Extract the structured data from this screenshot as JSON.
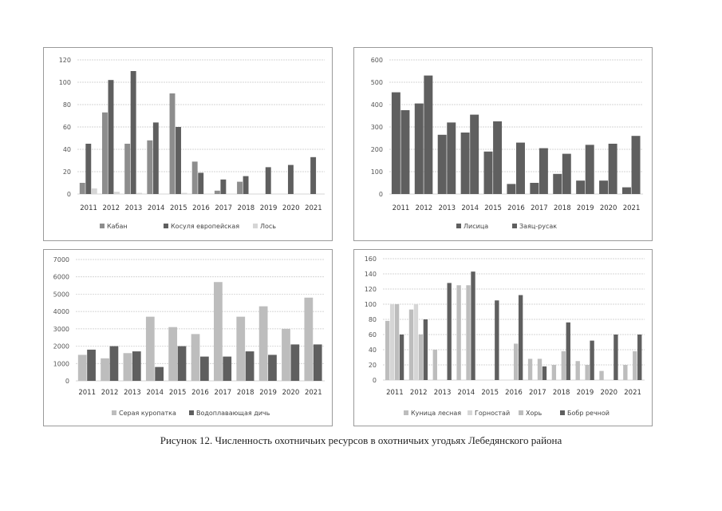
{
  "caption": "Рисунок 12. Численность охотничьих ресурсов в охотничьих угодьях Лебедянского района",
  "colors": {
    "dark": "#5f5f5f",
    "mid": "#8d8d8d",
    "light": "#bdbdbd",
    "pale": "#d6d6d6",
    "grid": "#c8c8c8"
  },
  "chart_data": [
    {
      "type": "bar",
      "title": "",
      "xlabel": "",
      "ylabel": "",
      "categories": [
        "2011",
        "2012",
        "2013",
        "2014",
        "2015",
        "2016",
        "2017",
        "2018",
        "2019",
        "2020",
        "2021"
      ],
      "ylim": [
        0,
        120
      ],
      "yticks": [
        "0",
        "20",
        "40",
        "60",
        "80",
        "100",
        "120"
      ],
      "series": [
        {
          "name": "Кабан",
          "values": [
            10,
            73,
            45,
            48,
            90,
            29,
            3,
            11,
            0,
            0,
            0
          ]
        },
        {
          "name": "Косуля европейская",
          "values": [
            45,
            102,
            110,
            64,
            60,
            19,
            13,
            16,
            24,
            26,
            33
          ]
        },
        {
          "name": "Лось",
          "values": [
            5,
            2,
            1,
            0,
            1,
            0,
            0,
            0,
            0,
            0,
            0
          ]
        }
      ],
      "legend": "bottom"
    },
    {
      "type": "bar",
      "title": "",
      "xlabel": "",
      "ylabel": "",
      "categories": [
        "2011",
        "2012",
        "2013",
        "2014",
        "2015",
        "2016",
        "2017",
        "2018",
        "2019",
        "2020",
        "2021"
      ],
      "ylim": [
        0,
        600
      ],
      "yticks": [
        "0",
        "100",
        "200",
        "300",
        "400",
        "500",
        "600"
      ],
      "series": [
        {
          "name": "Лисица",
          "values": [
            455,
            405,
            265,
            275,
            190,
            45,
            50,
            90,
            60,
            60,
            30
          ]
        },
        {
          "name": "Заяц-русак",
          "values": [
            375,
            530,
            320,
            355,
            325,
            230,
            205,
            180,
            220,
            225,
            260
          ]
        }
      ],
      "legend": "bottom"
    },
    {
      "type": "bar",
      "title": "",
      "xlabel": "",
      "ylabel": "",
      "categories": [
        "2011",
        "2012",
        "2013",
        "2014",
        "2015",
        "2016",
        "2017",
        "2018",
        "2019",
        "2020",
        "2021"
      ],
      "ylim": [
        0,
        7000
      ],
      "yticks": [
        "0",
        "1000",
        "2000",
        "3000",
        "4000",
        "5000",
        "6000",
        "7000"
      ],
      "series": [
        {
          "name": "Серая куропатка",
          "values": [
            1500,
            1300,
            1600,
            3700,
            3100,
            2700,
            5700,
            3700,
            4300,
            3000,
            4800
          ]
        },
        {
          "name": "Водоплавающая дичь",
          "values": [
            1800,
            2000,
            1700,
            800,
            2000,
            1400,
            1400,
            1700,
            1500,
            2100,
            2100
          ]
        }
      ],
      "legend": "bottom"
    },
    {
      "type": "bar",
      "title": "",
      "xlabel": "",
      "ylabel": "",
      "categories": [
        "2011",
        "2012",
        "2013",
        "2014",
        "2015",
        "2016",
        "2017",
        "2018",
        "2019",
        "2020",
        "2021"
      ],
      "ylim": [
        0,
        160
      ],
      "yticks": [
        "0",
        "20",
        "40",
        "60",
        "80",
        "100",
        "120",
        "140",
        "160"
      ],
      "series": [
        {
          "name": "Куница лесная",
          "values": [
            78,
            93,
            40,
            125,
            0,
            0,
            28,
            20,
            25,
            12,
            20
          ]
        },
        {
          "name": "Горностай",
          "values": [
            100,
            100,
            0,
            0,
            0,
            0,
            0,
            0,
            0,
            0,
            0
          ]
        },
        {
          "name": "Хорь",
          "values": [
            100,
            60,
            0,
            125,
            0,
            48,
            28,
            38,
            20,
            0,
            38
          ]
        },
        {
          "name": "Бобр речной",
          "values": [
            60,
            80,
            128,
            143,
            105,
            112,
            18,
            76,
            52,
            60,
            60
          ]
        }
      ],
      "legend": "bottom"
    }
  ]
}
